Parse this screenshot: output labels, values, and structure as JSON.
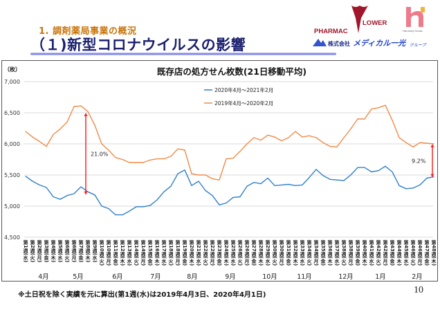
{
  "header": {
    "section": "1. 調剤薬局事業の概況",
    "title": "（１)新型コロナウイルスの影響"
  },
  "logos": {
    "pharmac_flower": "PHARMAC FLOWER",
    "harmony_house": "Harmony House",
    "medical_ikko": "株式会社メディカル一光グループ"
  },
  "chart_data": {
    "type": "line",
    "title": "既存店の処方せん枚数(21日移動平均)",
    "ylabel": "（枚）",
    "ylim": [
      4500,
      7000
    ],
    "yticks": [
      "4,500",
      "5,000",
      "5,500",
      "6,000",
      "6,500",
      "7,000"
    ],
    "ytick_values": [
      4500,
      5000,
      5500,
      6000,
      6500,
      7000
    ],
    "grid": true,
    "legend_position": "top-center",
    "x": [
      "第1週(水)",
      "第2週(火)",
      "第2週(月)",
      "第3週(金)",
      "第4週(木)",
      "第5週(水)",
      "第6週(火)",
      "第6週(月)",
      "第7週(金)",
      "第8週(木)",
      "第9週(水)",
      "第10週(火)",
      "第10週(月)",
      "第11週(金)",
      "第12週(木)",
      "第13週(水)",
      "第14週(火)",
      "第14週(月)",
      "第15週(金)",
      "第16週(木)",
      "第17週(水)",
      "第18週(火)",
      "第18週(月)",
      "第19週(金)",
      "第20週(木)",
      "第21週(水)",
      "第22週(火)",
      "第22週(月)",
      "第23週(金)",
      "第24週(木)",
      "第25週(水)",
      "第26週(火)",
      "第26週(月)",
      "第27週(金)",
      "第28週(木)",
      "第29週(水)",
      "第30週(火)",
      "第30週(月)",
      "第31週(金)",
      "第32週(木)",
      "第33週(水)",
      "第34週(火)",
      "第34週(月)",
      "第35週(金)",
      "第36週(木)",
      "第37週(水)",
      "第38週(火)",
      "第38週(月)",
      "第39週(金)",
      "第40週(木)",
      "第41週(水)",
      "第42週(火)",
      "第42週(月)",
      "第43週(金)",
      "第44週(木)",
      "第45週(水)",
      "第46週(火)",
      "第46週(月)",
      "第47週(金)",
      "第48週(木)"
    ],
    "months": [
      "4月",
      "5月",
      "6月",
      "7月",
      "8月",
      "9月",
      "10月",
      "11月",
      "12月",
      "1月",
      "2月"
    ],
    "series": [
      {
        "name": "2020年4月～2021年2月",
        "color": "#2e7fcc",
        "values": [
          5480,
          5400,
          5340,
          5300,
          5150,
          5110,
          5170,
          5200,
          5310,
          5230,
          5180,
          5000,
          4960,
          4860,
          4860,
          4920,
          4990,
          4990,
          5010,
          5100,
          5230,
          5320,
          5520,
          5580,
          5330,
          5400,
          5250,
          5170,
          5020,
          5050,
          5140,
          5150,
          5320,
          5380,
          5360,
          5450,
          5330,
          5340,
          5350,
          5330,
          5340,
          5460,
          5590,
          5490,
          5430,
          5420,
          5410,
          5500,
          5620,
          5620,
          5550,
          5570,
          5640,
          5550,
          5330,
          5280,
          5290,
          5340,
          5450,
          5470
        ]
      },
      {
        "name": "2019年4月～2020年2月",
        "color": "#f08a45",
        "values": [
          6200,
          6110,
          6040,
          5960,
          6150,
          6240,
          6350,
          6600,
          6610,
          6520,
          6300,
          6000,
          5900,
          5780,
          5750,
          5700,
          5700,
          5700,
          5740,
          5760,
          5760,
          5800,
          5920,
          5900,
          5520,
          5500,
          5500,
          5440,
          5420,
          5760,
          5770,
          5880,
          6000,
          6100,
          6060,
          6140,
          6110,
          6050,
          6100,
          6200,
          6110,
          6130,
          6100,
          6020,
          5960,
          5950,
          6100,
          6240,
          6400,
          6400,
          6560,
          6580,
          6620,
          6380,
          6100,
          6020,
          5950,
          6020,
          6010,
          6000
        ]
      }
    ],
    "annotations": [
      {
        "label": "21.0%",
        "x_index": 9,
        "from": 6500,
        "to": 5180,
        "color": "#ff2020"
      },
      {
        "label": "9.2%",
        "x_index": 59,
        "from": 6000,
        "to": 5460,
        "color": "#ff2020"
      }
    ]
  },
  "footnote": "※土日祝を除く実績を元に算出(第1週(水)は2019年4月3日、2020年4月1日)",
  "page_number": "10"
}
